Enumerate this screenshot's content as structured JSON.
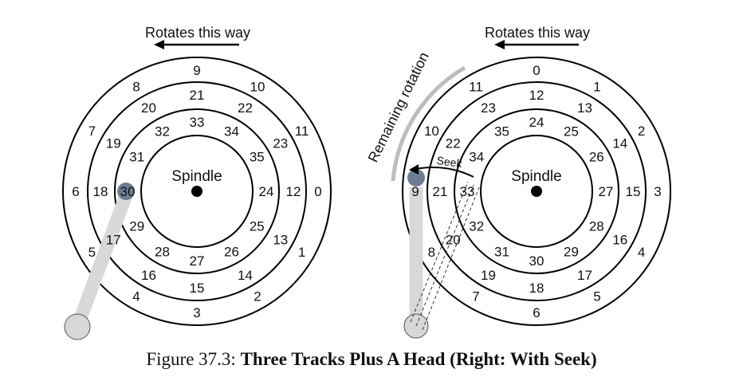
{
  "left_disk": {
    "header": "Rotates this way",
    "spindle_label": "Spindle",
    "outer_track": [
      "0",
      "1",
      "2",
      "3",
      "4",
      "5",
      "6",
      "7",
      "8",
      "9",
      "10",
      "11"
    ],
    "middle_track": [
      "12",
      "13",
      "14",
      "15",
      "16",
      "17",
      "18",
      "19",
      "20",
      "21",
      "22",
      "23"
    ],
    "inner_track": [
      "24",
      "25",
      "26",
      "27",
      "28",
      "29",
      "30",
      "31",
      "32",
      "33",
      "34",
      "35"
    ]
  },
  "right_disk": {
    "header": "Rotates this way",
    "spindle_label": "Spindle",
    "outer_track": [
      "3",
      "4",
      "5",
      "6",
      "7",
      "8",
      "9",
      "10",
      "11",
      "0",
      "1",
      "2"
    ],
    "middle_track": [
      "15",
      "16",
      "17",
      "18",
      "19",
      "20",
      "21",
      "22",
      "23",
      "12",
      "13",
      "14"
    ],
    "inner_track": [
      "27",
      "28",
      "29",
      "30",
      "31",
      "32",
      "33",
      "34",
      "35",
      "24",
      "25",
      "26"
    ],
    "seek_label": "Seek",
    "remaining_label": "Remaining rotation"
  },
  "caption": {
    "prefix": "Figure 37.3:",
    "title": "Three Tracks Plus A Head (Right: With Seek)"
  },
  "colors": {
    "arm": "#d8d8d8",
    "head": "#6e7c95",
    "line": "#000000"
  }
}
